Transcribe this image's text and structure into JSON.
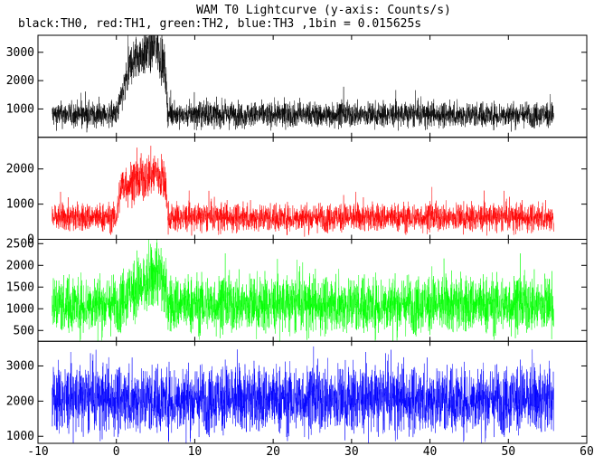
{
  "title": "WAM T0 Lightcurve (y-axis: Counts/s)",
  "subtitle": "black:TH0, red:TH1, green:TH2, blue:TH3 ,1bin = 0.015625s",
  "chart_data": {
    "type": "line",
    "title": "WAM T0 Lightcurve (y-axis: Counts/s)",
    "subtitle": "black:TH0, red:TH1, green:TH2, blue:TH3 ,1bin = 0.015625s",
    "xlabel": "",
    "ylabel": "",
    "xlim": [
      -10,
      60
    ],
    "xticks": [
      -10,
      0,
      10,
      20,
      30,
      40,
      50,
      60
    ],
    "data_x_range": [
      -8.2,
      55.8
    ],
    "bin_s": 0.015625,
    "grid": false,
    "panels": [
      {
        "name": "TH0",
        "color": "#000000",
        "ylim": [
          0,
          3600
        ],
        "yticks": [
          1000,
          2000,
          3000
        ],
        "baseline": 800,
        "noise": 220,
        "spikes": 160,
        "burst": {
          "start": 0,
          "end": 6.5,
          "segments": [
            {
              "t": 0.0,
              "level": 0
            },
            {
              "t": 2.0,
              "level": 1900
            },
            {
              "t": 3.5,
              "level": 2200
            },
            {
              "t": 5.2,
              "level": 2400
            },
            {
              "t": 6.2,
              "level": 1600
            },
            {
              "t": 6.6,
              "level": 0
            }
          ]
        }
      },
      {
        "name": "TH1",
        "color": "#ff0000",
        "ylim": [
          0,
          2900
        ],
        "yticks": [
          0,
          1000,
          2000
        ],
        "baseline": 620,
        "noise": 200,
        "spikes": 140,
        "burst": {
          "start": 0,
          "end": 6.5,
          "segments": [
            {
              "t": 0.0,
              "level": 0
            },
            {
              "t": 0.6,
              "level": 900
            },
            {
              "t": 3.0,
              "level": 1050
            },
            {
              "t": 5.0,
              "level": 1300
            },
            {
              "t": 6.2,
              "level": 1000
            },
            {
              "t": 6.6,
              "level": 0
            }
          ]
        }
      },
      {
        "name": "TH2",
        "color": "#00ff00",
        "ylim": [
          250,
          2600
        ],
        "yticks": [
          500,
          1000,
          1500,
          2000,
          2500
        ],
        "baseline": 1100,
        "noise": 330,
        "spikes": 180,
        "burst": {
          "start": 0,
          "end": 6.5,
          "segments": [
            {
              "t": 0.0,
              "level": 0
            },
            {
              "t": 1.5,
              "level": 250
            },
            {
              "t": 4.0,
              "level": 450
            },
            {
              "t": 5.2,
              "level": 800
            },
            {
              "t": 6.0,
              "level": 500
            },
            {
              "t": 6.6,
              "level": 0
            }
          ]
        }
      },
      {
        "name": "TH3",
        "color": "#0000ff",
        "ylim": [
          800,
          3700
        ],
        "yticks": [
          1000,
          2000,
          3000
        ],
        "baseline": 2050,
        "noise": 480,
        "spikes": 220,
        "burst": {
          "start": 0,
          "end": 0,
          "segments": []
        }
      }
    ]
  }
}
